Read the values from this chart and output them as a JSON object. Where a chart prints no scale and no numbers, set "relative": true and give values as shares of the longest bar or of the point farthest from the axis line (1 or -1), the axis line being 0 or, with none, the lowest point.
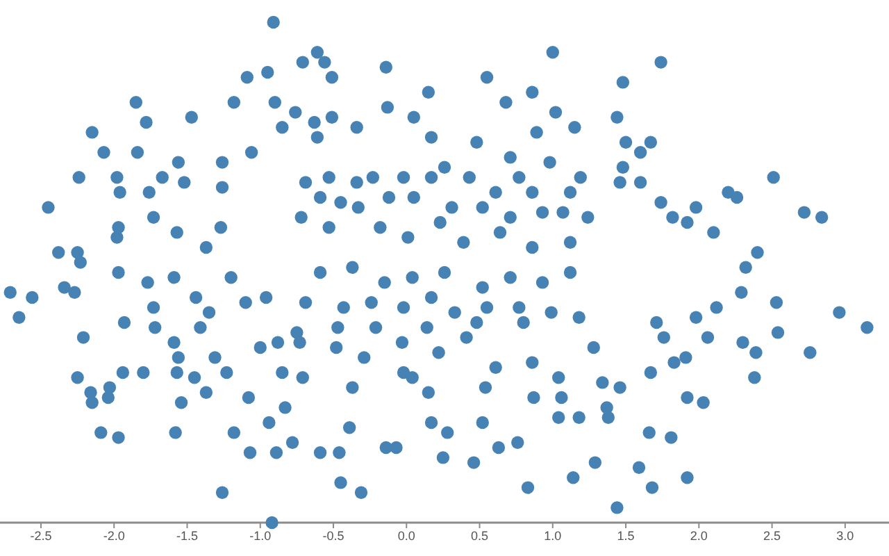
{
  "chart_data": {
    "type": "scatter",
    "relative": true,
    "color": "#4682b4",
    "marker": "circle",
    "xlim": [
      -2.78,
      3.3
    ],
    "xticks": [
      -2.5,
      {
        "value": -2,
        "label": "-2.0"
      },
      -1.5,
      {
        "value": -1,
        "label": "-1.0"
      },
      -0.5,
      {
        "value": 0,
        "label": "0.0"
      },
      0.5,
      {
        "value": 1,
        "label": "1.0"
      },
      1.5,
      {
        "value": 2,
        "label": "2.0"
      },
      2.5,
      {
        "value": 3,
        "label": "3.0"
      }
    ],
    "x": [
      -0.91,
      1.0,
      -0.61,
      -0.71,
      -0.56,
      -0.51,
      -0.14,
      0.55,
      1.74,
      -0.95,
      -1.09,
      -1.85,
      -1.18,
      -0.9,
      0.68,
      0.86,
      0.15,
      1.48,
      -1.47,
      -1.78,
      -2.15,
      -2.07,
      -1.84,
      -2.24,
      -2.45,
      1.44,
      1.02,
      1.15,
      0.89,
      0.05,
      -0.13,
      -0.76,
      -0.63,
      -0.51,
      -0.34,
      -0.85,
      1.5,
      1.67,
      1.6,
      0.48,
      0.17,
      -0.61,
      -1.06,
      -1.56,
      -1.26,
      -1.98,
      -1.67,
      -1.52,
      -1.96,
      -1.76,
      -1.26,
      2.51,
      2.2,
      2.26,
      2.72,
      2.84,
      1.98,
      1.82,
      1.92,
      2.1,
      1.74,
      1.46,
      1.6,
      1.48,
      0.98,
      0.71,
      -1.73,
      -1.97,
      -1.98,
      -2.38,
      -2.25,
      -1.57,
      -1.37,
      -1.27,
      -2.71,
      -2.56,
      -2.65,
      -2.34,
      -2.27,
      -2.23,
      -1.93,
      -2.21,
      -2.25,
      -2.16,
      -2.15,
      -2.03,
      -2.04,
      -1.94,
      -2.09,
      -1.97,
      -1.8,
      -1.58,
      -1.57,
      -1.54,
      -1.37,
      -1.45,
      -1.26,
      -0.92,
      -1.07,
      -1.18,
      -0.94,
      -1.08,
      -0.89,
      -0.78,
      -0.83,
      -1.31,
      -1.23,
      -1.56,
      -1.59,
      -1.72,
      -1.41,
      -1.0,
      -0.88,
      -0.85,
      -0.71,
      -1.73,
      -1.77,
      -1.59,
      -1.44,
      -1.2,
      -1.35,
      -1.1,
      -0.96,
      -1.97,
      -0.59,
      -0.45,
      -0.31,
      -0.46,
      -0.39,
      -0.14,
      -0.07,
      0.25,
      0.46,
      0.83,
      1.14,
      1.44,
      1.68,
      1.92,
      1.59,
      1.29,
      1.66,
      1.81,
      0.63,
      0.76,
      0.28,
      0.17,
      0.52,
      1.04,
      1.18,
      1.38,
      1.92,
      2.03,
      2.38,
      2.39,
      2.3,
      2.76,
      2.96,
      3.15,
      2.53,
      2.54,
      2.29,
      2.12,
      1.98,
      2.06,
      1.83,
      1.91,
      1.67,
      1.46,
      1.34,
      1.37,
      2.32,
      2.4,
      1.76,
      1.71,
      -0.53,
      -0.34,
      -0.23,
      -0.02,
      0.17,
      0.26,
      0.43,
      0.61,
      0.77,
      0.86,
      1.12,
      1.19,
      -0.69,
      -0.59,
      -0.45,
      -0.33,
      -0.12,
      0.05,
      0.31,
      0.52,
      0.71,
      0.93,
      1.07,
      -0.72,
      -0.53,
      -0.18,
      0.01,
      0.23,
      0.39,
      0.64,
      0.86,
      1.12,
      1.24,
      -0.59,
      -0.37,
      -0.15,
      0.04,
      0.26,
      0.52,
      0.71,
      0.93,
      1.12,
      -0.69,
      -0.43,
      -0.24,
      -0.02,
      0.17,
      0.33,
      0.55,
      0.77,
      0.99,
      1.18,
      -0.75,
      -0.47,
      -0.21,
      0.14,
      0.48,
      0.8,
      -0.73,
      -0.48,
      -0.29,
      -0.03,
      0.22,
      0.41,
      0.61,
      0.86,
      1.04,
      1.28,
      0.04,
      -0.37,
      0.15,
      0.54,
      0.87,
      1.06,
      -0.02
    ],
    "values": [
      1.0,
      0.94,
      0.94,
      0.92,
      0.92,
      0.89,
      0.91,
      0.89,
      0.92,
      0.9,
      0.89,
      0.84,
      0.84,
      0.84,
      0.84,
      0.86,
      0.86,
      0.88,
      0.81,
      0.8,
      0.78,
      0.74,
      0.74,
      0.69,
      0.63,
      0.81,
      0.82,
      0.79,
      0.78,
      0.81,
      0.83,
      0.82,
      0.8,
      0.81,
      0.79,
      0.79,
      0.76,
      0.76,
      0.74,
      0.76,
      0.77,
      0.77,
      0.74,
      0.72,
      0.72,
      0.69,
      0.69,
      0.68,
      0.66,
      0.66,
      0.67,
      0.69,
      0.66,
      0.65,
      0.62,
      0.61,
      0.63,
      0.61,
      0.6,
      0.58,
      0.64,
      0.68,
      0.68,
      0.71,
      0.72,
      0.73,
      0.61,
      0.59,
      0.57,
      0.54,
      0.54,
      0.58,
      0.55,
      0.59,
      0.46,
      0.45,
      0.41,
      0.47,
      0.46,
      0.52,
      0.4,
      0.37,
      0.29,
      0.26,
      0.24,
      0.27,
      0.25,
      0.3,
      0.18,
      0.17,
      0.3,
      0.18,
      0.3,
      0.24,
      0.26,
      0.29,
      0.06,
      0.0,
      0.14,
      0.18,
      0.2,
      0.25,
      0.14,
      0.16,
      0.23,
      0.33,
      0.3,
      0.33,
      0.36,
      0.39,
      0.39,
      0.35,
      0.36,
      0.3,
      0.29,
      0.43,
      0.48,
      0.49,
      0.45,
      0.49,
      0.42,
      0.44,
      0.45,
      0.5,
      0.14,
      0.08,
      0.06,
      0.14,
      0.19,
      0.15,
      0.15,
      0.13,
      0.12,
      0.07,
      0.09,
      0.03,
      0.07,
      0.09,
      0.11,
      0.12,
      0.18,
      0.17,
      0.15,
      0.16,
      0.18,
      0.2,
      0.2,
      0.21,
      0.21,
      0.21,
      0.25,
      0.24,
      0.29,
      0.34,
      0.36,
      0.34,
      0.42,
      0.39,
      0.44,
      0.38,
      0.46,
      0.43,
      0.41,
      0.37,
      0.32,
      0.33,
      0.3,
      0.27,
      0.28,
      0.23,
      0.51,
      0.54,
      0.37,
      0.4,
      0.69,
      0.68,
      0.69,
      0.69,
      0.69,
      0.71,
      0.69,
      0.66,
      0.69,
      0.66,
      0.66,
      0.69,
      0.68,
      0.65,
      0.64,
      0.63,
      0.65,
      0.65,
      0.63,
      0.63,
      0.61,
      0.62,
      0.62,
      0.61,
      0.59,
      0.59,
      0.57,
      0.6,
      0.56,
      0.58,
      0.55,
      0.56,
      0.61,
      0.5,
      0.51,
      0.48,
      0.49,
      0.5,
      0.47,
      0.49,
      0.48,
      0.5,
      0.44,
      0.43,
      0.44,
      0.43,
      0.45,
      0.42,
      0.43,
      0.43,
      0.42,
      0.41,
      0.38,
      0.39,
      0.39,
      0.39,
      0.4,
      0.4,
      0.36,
      0.35,
      0.33,
      0.36,
      0.34,
      0.37,
      0.31,
      0.32,
      0.29,
      0.35,
      0.29,
      0.27,
      0.26,
      0.27,
      0.25,
      0.25,
      0.3
    ]
  }
}
